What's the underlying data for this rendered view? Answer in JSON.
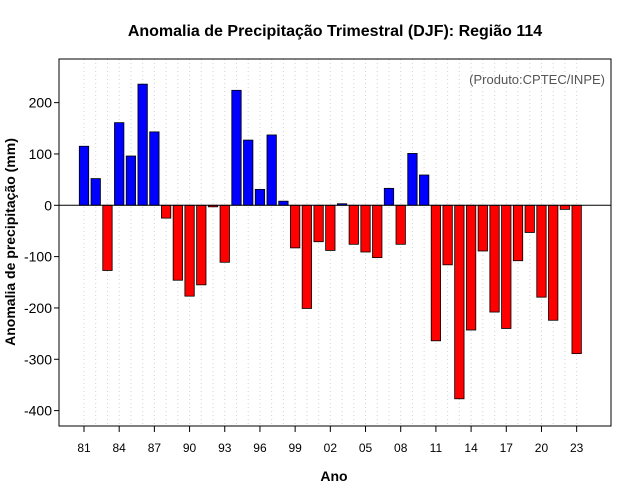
{
  "colors": {
    "positive": "#0000ff",
    "negative": "#ff0000",
    "grid": "#d3d3d3",
    "annotation": "#555555"
  },
  "chart_data": {
    "type": "bar",
    "title": "Anomalia de Precipitação Trimestral (DJF): Região 114",
    "xlabel": "Ano",
    "ylabel": "Anomalia de precipitação (mm)",
    "annotation": "(Produto:CPTEC/INPE)",
    "ylim": [
      -430,
      285
    ],
    "yticks": [
      -400,
      -300,
      -200,
      -100,
      0,
      100,
      200
    ],
    "years": [
      1981,
      1982,
      1983,
      1984,
      1985,
      1986,
      1987,
      1988,
      1989,
      1990,
      1991,
      1992,
      1993,
      1994,
      1995,
      1996,
      1997,
      1998,
      1999,
      2000,
      2001,
      2002,
      2003,
      2004,
      2005,
      2006,
      2007,
      2008,
      2009,
      2010,
      2011,
      2012,
      2013,
      2014,
      2015,
      2016,
      2017,
      2018,
      2019,
      2020,
      2021,
      2022,
      2023
    ],
    "values": [
      115,
      52,
      -127,
      161,
      96,
      236,
      143,
      -25,
      -146,
      -177,
      -155,
      -3,
      -111,
      224,
      127,
      31,
      137,
      8,
      -83,
      -201,
      -71,
      -88,
      3,
      -76,
      -91,
      -102,
      33,
      -76,
      101,
      59,
      -264,
      -116,
      -377,
      -243,
      -89,
      -208,
      -240,
      -108,
      -53,
      -179,
      -224,
      -8,
      -289
    ],
    "xtick_labels": [
      {
        "year": 1981,
        "label": "81"
      },
      {
        "year": 1984,
        "label": "84"
      },
      {
        "year": 1987,
        "label": "87"
      },
      {
        "year": 1990,
        "label": "90"
      },
      {
        "year": 1993,
        "label": "93"
      },
      {
        "year": 1996,
        "label": "96"
      },
      {
        "year": 1999,
        "label": "99"
      },
      {
        "year": 2002,
        "label": "02"
      },
      {
        "year": 2005,
        "label": "05"
      },
      {
        "year": 2008,
        "label": "08"
      },
      {
        "year": 2011,
        "label": "11"
      },
      {
        "year": 2014,
        "label": "14"
      },
      {
        "year": 2017,
        "label": "17"
      },
      {
        "year": 2020,
        "label": "20"
      },
      {
        "year": 2023,
        "label": "23"
      }
    ]
  }
}
